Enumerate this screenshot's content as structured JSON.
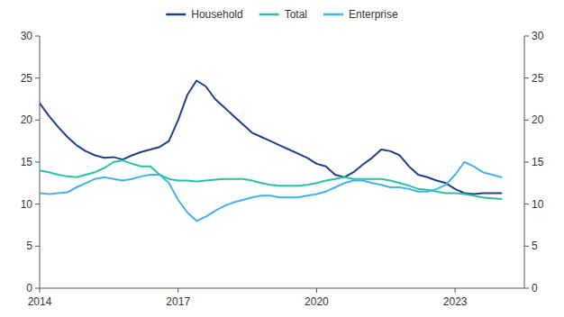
{
  "chart_data": {
    "type": "line",
    "x": [
      2014.0,
      2014.2,
      2014.4,
      2014.6,
      2014.8,
      2015.0,
      2015.2,
      2015.4,
      2015.6,
      2015.8,
      2016.0,
      2016.2,
      2016.4,
      2016.6,
      2016.8,
      2017.0,
      2017.2,
      2017.4,
      2017.6,
      2017.8,
      2018.0,
      2018.2,
      2018.4,
      2018.6,
      2018.8,
      2019.0,
      2019.2,
      2019.4,
      2019.6,
      2019.8,
      2020.0,
      2020.2,
      2020.4,
      2020.6,
      2020.8,
      2021.0,
      2021.2,
      2021.4,
      2021.6,
      2021.8,
      2022.0,
      2022.2,
      2022.4,
      2022.6,
      2022.8,
      2023.0,
      2023.2,
      2023.4,
      2023.6,
      2023.8,
      2024.0
    ],
    "series": [
      {
        "name": "Household",
        "color": "#1f3f8f",
        "values": [
          22.0,
          20.5,
          19.2,
          18.0,
          17.0,
          16.3,
          15.8,
          15.5,
          15.6,
          15.3,
          15.8,
          16.2,
          16.5,
          16.8,
          17.5,
          20.0,
          23.0,
          24.7,
          24.0,
          22.5,
          21.5,
          20.5,
          19.5,
          18.5,
          18.0,
          17.5,
          17.0,
          16.5,
          16.0,
          15.5,
          14.8,
          14.5,
          13.5,
          13.2,
          13.8,
          14.7,
          15.5,
          16.5,
          16.3,
          15.8,
          14.5,
          13.5,
          13.2,
          12.8,
          12.5,
          11.8,
          11.3,
          11.2,
          11.3,
          11.3,
          11.3
        ]
      },
      {
        "name": "Total",
        "color": "#2bbfa4",
        "values": [
          14.0,
          13.8,
          13.5,
          13.3,
          13.2,
          13.5,
          13.8,
          14.3,
          15.0,
          15.2,
          14.8,
          14.5,
          14.5,
          13.5,
          13.0,
          12.8,
          12.8,
          12.7,
          12.8,
          12.9,
          13.0,
          13.0,
          13.0,
          12.8,
          12.5,
          12.3,
          12.2,
          12.2,
          12.2,
          12.3,
          12.5,
          12.8,
          13.0,
          13.2,
          13.0,
          13.0,
          13.0,
          13.0,
          12.8,
          12.5,
          12.2,
          11.8,
          11.7,
          11.5,
          11.3,
          11.3,
          11.2,
          11.0,
          10.8,
          10.7,
          10.6
        ]
      },
      {
        "name": "Enterprise",
        "color": "#41b4e6",
        "values": [
          11.3,
          11.2,
          11.3,
          11.4,
          12.0,
          12.5,
          13.0,
          13.2,
          13.0,
          12.8,
          13.0,
          13.3,
          13.5,
          13.5,
          12.5,
          10.5,
          9.0,
          8.0,
          8.5,
          9.2,
          9.8,
          10.2,
          10.5,
          10.8,
          11.0,
          11.0,
          10.8,
          10.8,
          10.8,
          11.0,
          11.2,
          11.5,
          12.0,
          12.5,
          12.8,
          12.8,
          12.5,
          12.3,
          12.0,
          12.0,
          11.8,
          11.5,
          11.5,
          11.8,
          12.3,
          13.5,
          15.0,
          14.5,
          13.8,
          13.5,
          13.2
        ]
      }
    ],
    "xlim": [
      2014.0,
      2024.5
    ],
    "xticks": [
      2014,
      2017,
      2020,
      2023
    ],
    "ylim": [
      0,
      30
    ],
    "yticks": [
      0,
      5,
      10,
      15,
      20,
      25,
      30
    ],
    "y2lim": [
      0,
      30
    ],
    "y2ticks": [
      0,
      5,
      10,
      15,
      20,
      25,
      30
    ],
    "grid": false,
    "legend": "top"
  }
}
